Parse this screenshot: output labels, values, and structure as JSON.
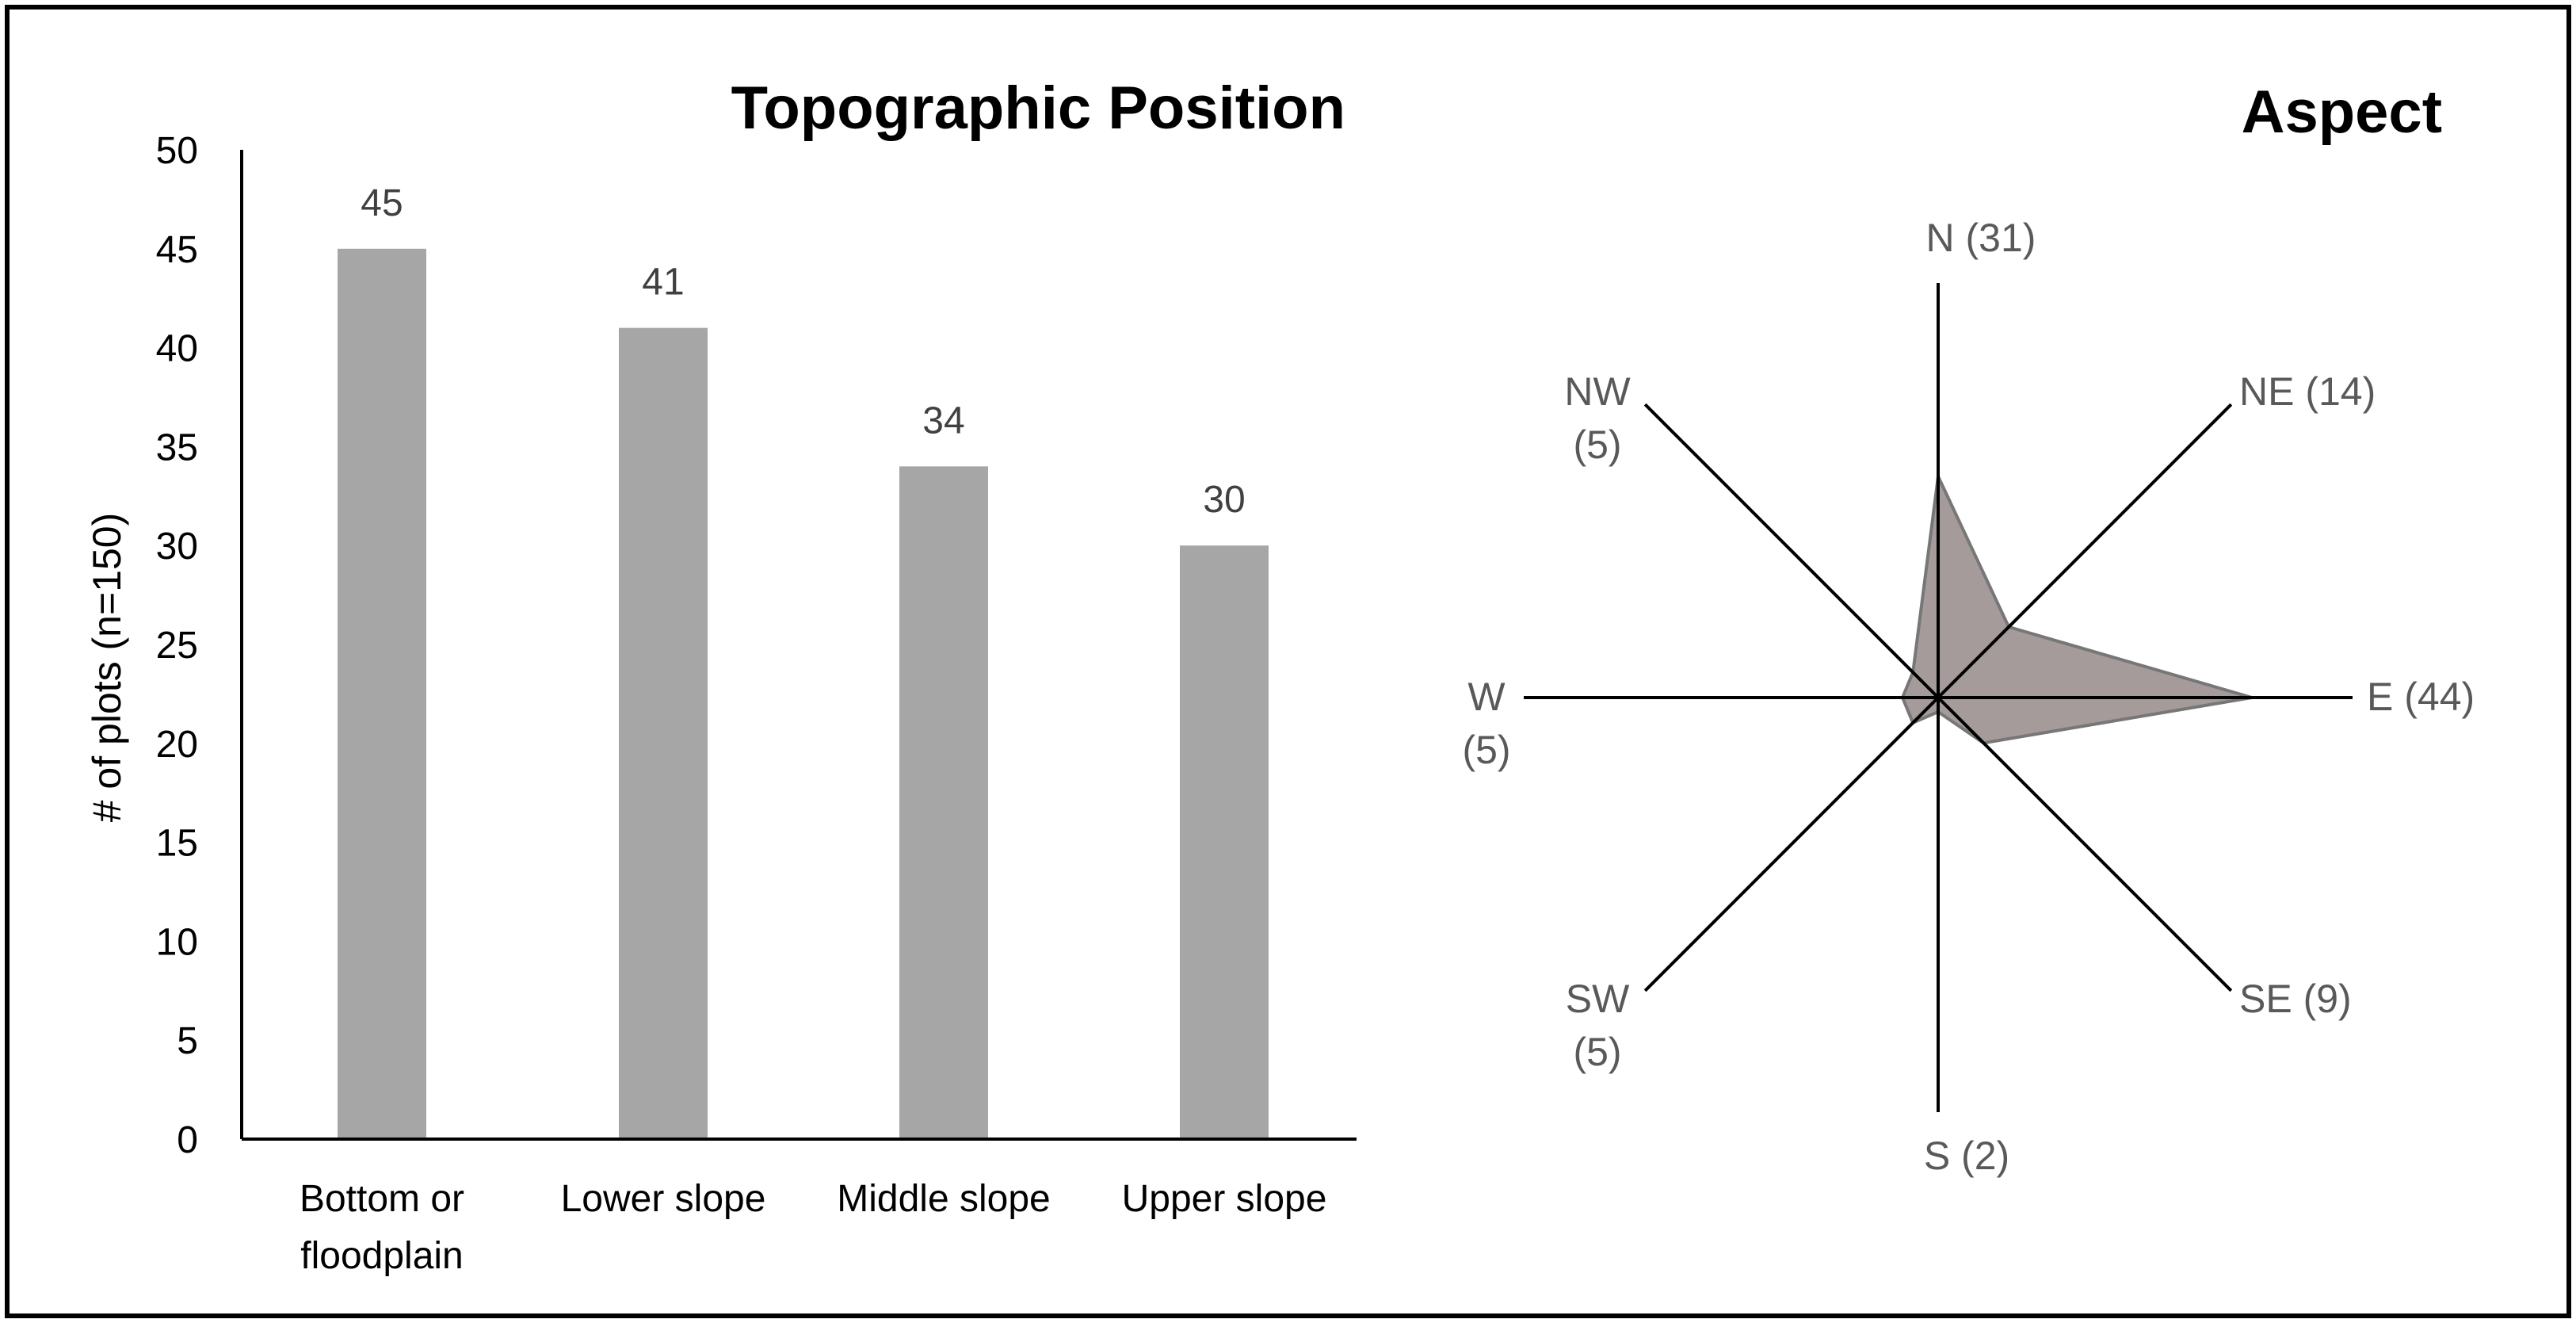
{
  "chart_data": [
    {
      "type": "bar",
      "title": "Topographic Position",
      "xlabel": "",
      "ylabel": "# of plots (n=150)",
      "categories": [
        "Bottom or floodplain",
        "Lower slope",
        "Middle slope",
        "Upper slope"
      ],
      "category_lines": [
        [
          "Bottom or",
          "floodplain"
        ],
        [
          "Lower slope"
        ],
        [
          "Middle slope"
        ],
        [
          "Upper slope"
        ]
      ],
      "values": [
        45,
        41,
        34,
        30
      ],
      "data_labels": [
        "45",
        "41",
        "34",
        "30"
      ],
      "ylim": [
        0,
        50
      ],
      "yticks": [
        0,
        5,
        10,
        15,
        20,
        25,
        30,
        35,
        40,
        45,
        50
      ],
      "grid": false,
      "bar_color": "#a6a6a6"
    },
    {
      "type": "radar",
      "title": "Aspect",
      "directions": [
        "N",
        "NE",
        "E",
        "SE",
        "S",
        "SW",
        "W",
        "NW"
      ],
      "values": [
        31,
        14,
        44,
        9,
        2,
        5,
        5,
        5
      ],
      "axis_labels": [
        [
          "N (31)"
        ],
        [
          "NE (14)"
        ],
        [
          "E (44)"
        ],
        [
          "SE (9)"
        ],
        [
          "S (2)"
        ],
        [
          "SW",
          "(5)"
        ],
        [
          "W",
          "(5)"
        ],
        [
          "NW",
          "(5)"
        ]
      ],
      "rmax": 50,
      "fill_color": "#a59b9b",
      "line_color": "#777777"
    }
  ],
  "colors": {
    "axis": "#000000",
    "text": "#404040",
    "title": "#000000",
    "frame": "#000000"
  }
}
